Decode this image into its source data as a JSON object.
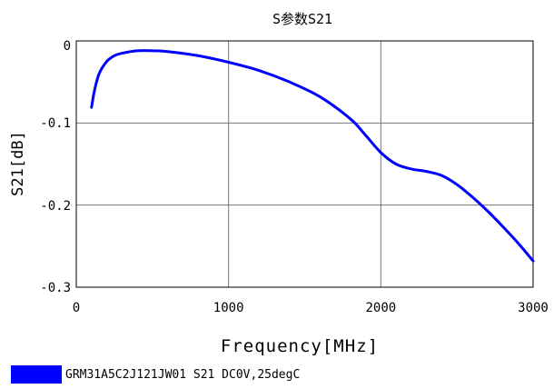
{
  "chart_data": {
    "type": "line",
    "title": "S参数S21",
    "xlabel": "Frequency[MHz]",
    "ylabel": "S21[dB]",
    "xlim": [
      0,
      3000
    ],
    "ylim": [
      -0.3,
      0
    ],
    "x_ticks": [
      "0",
      "1000",
      "2000",
      "3000"
    ],
    "y_ticks": [
      "0",
      "-0.1",
      "-0.2",
      "-0.3"
    ],
    "grid": true,
    "legend_position": "bottom-left",
    "series": [
      {
        "name": "GRM31A5C2J121JW01 S21 DC0V,25degC",
        "color": "#0000ff",
        "x": [
          100,
          120,
          150,
          200,
          250,
          300,
          400,
          500,
          600,
          800,
          1000,
          1200,
          1400,
          1600,
          1800,
          1900,
          2000,
          2100,
          2200,
          2300,
          2400,
          2500,
          2600,
          2700,
          2800,
          2900,
          3000
        ],
        "y": [
          -0.081,
          -0.06,
          -0.04,
          -0.025,
          -0.018,
          -0.015,
          -0.012,
          -0.012,
          -0.013,
          -0.018,
          -0.026,
          -0.036,
          -0.05,
          -0.068,
          -0.095,
          -0.115,
          -0.136,
          -0.15,
          -0.156,
          -0.159,
          -0.164,
          -0.175,
          -0.19,
          -0.207,
          -0.226,
          -0.246,
          -0.268
        ]
      }
    ]
  }
}
